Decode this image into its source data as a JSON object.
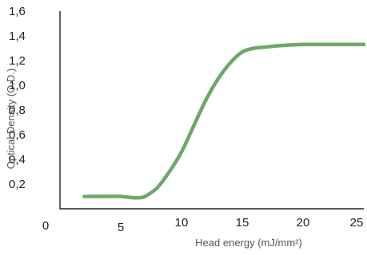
{
  "chart_data": {
    "type": "line",
    "xlabel": "Head energy (mJ/mm²)",
    "ylabel": "Optical Density (O.D.)",
    "xlim": [
      0,
      25
    ],
    "ylim": [
      0,
      1.6
    ],
    "x_ticks": [
      {
        "value": 0,
        "label": "0"
      },
      {
        "value": 5,
        "label": "5"
      },
      {
        "value": 10,
        "label": "10"
      },
      {
        "value": 15,
        "label": "15"
      },
      {
        "value": 20,
        "label": "20"
      },
      {
        "value": 25,
        "label": "25"
      }
    ],
    "y_ticks": [
      {
        "value": 0.2,
        "label": "0,2"
      },
      {
        "value": 0.4,
        "label": "0,4"
      },
      {
        "value": 0.6,
        "label": "0,6"
      },
      {
        "value": 0.8,
        "label": "0,8"
      },
      {
        "value": 1.0,
        "label": "1,0"
      },
      {
        "value": 1.2,
        "label": "1,2"
      },
      {
        "value": 1.4,
        "label": "1,4"
      },
      {
        "value": 1.6,
        "label": "1,6"
      }
    ],
    "grid": false,
    "legend": "none",
    "series": [
      {
        "color": "#6aaa64",
        "x": [
          2,
          3,
          4,
          5,
          6,
          6.5,
          7,
          8,
          9,
          10,
          11,
          12,
          13,
          14,
          15,
          16,
          17,
          18,
          20,
          22,
          24,
          25
        ],
        "y": [
          0.1,
          0.1,
          0.1,
          0.1,
          0.09,
          0.09,
          0.1,
          0.17,
          0.3,
          0.46,
          0.67,
          0.88,
          1.05,
          1.18,
          1.27,
          1.3,
          1.31,
          1.32,
          1.33,
          1.33,
          1.33,
          1.33
        ]
      }
    ]
  }
}
